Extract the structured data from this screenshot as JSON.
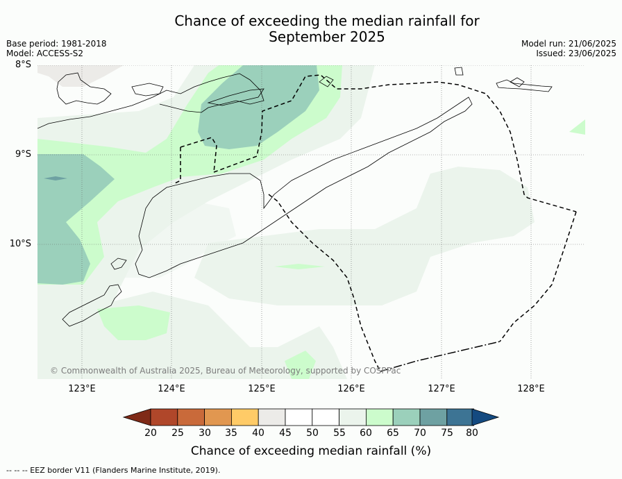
{
  "title_line1": "Chance of exceeding the median rainfall for",
  "title_line2": "September 2025",
  "meta": {
    "base_period": "Base period: 1981-2018",
    "model": "Model: ACCESS-S2",
    "model_run": "Model run: 21/06/2025",
    "issued": "Issued: 23/06/2025"
  },
  "map": {
    "lat_labels": [
      "8°S",
      "9°S",
      "10°S"
    ],
    "lon_labels": [
      "123°E",
      "124°E",
      "125°E",
      "126°E",
      "127°E",
      "128°E"
    ],
    "gridlines": true,
    "copyright": "© Commonwealth of Australia 2025, Bureau of Meteorology, supported by COSPPac"
  },
  "colorbar": {
    "title": "Chance of exceeding median rainfall (%)",
    "ticks": [
      "20",
      "25",
      "30",
      "35",
      "40",
      "45",
      "50",
      "55",
      "60",
      "65",
      "70",
      "75",
      "80"
    ],
    "colors": {
      "below_20": "#7f2a17",
      "20-25": "#b0472a",
      "25-30": "#c96a3a",
      "30-35": "#e19750",
      "35-40": "#ffcb67",
      "40-45": "#ecebe8",
      "45-50": "#ffffff",
      "50-55": "#ffffff",
      "55-60": "#ebf4ec",
      "60-65": "#ccfccc",
      "65-70": "#9bd0bb",
      "70-75": "#6ea1a2",
      "75-80": "#3d7494",
      "above_80": "#144a80"
    }
  },
  "footer": "-- -- -- EEZ border V11 (Flanders Marine Institute, 2019)."
}
